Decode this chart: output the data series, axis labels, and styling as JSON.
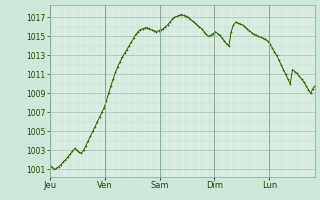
{
  "background_color": "#cce8d8",
  "plot_bg_color": "#dff0e8",
  "line_color": "#2a6000",
  "marker_color": "#2a6000",
  "grid_color_major": "#aacaba",
  "grid_color_minor": "#c0dcc8",
  "yticks": [
    1001,
    1003,
    1005,
    1007,
    1009,
    1011,
    1013,
    1015,
    1017
  ],
  "ylim": [
    1000.2,
    1018.3
  ],
  "xlabels": [
    "Jeu",
    "Ven",
    "Sam",
    "Dim",
    "Lun"
  ],
  "x_day_positions": [
    0,
    24,
    48,
    72,
    96
  ],
  "total_hours": 116,
  "pressure_data": [
    1001.5,
    1001.2,
    1001.0,
    1001.1,
    1001.3,
    1001.5,
    1001.8,
    1002.0,
    1002.3,
    1002.6,
    1002.9,
    1003.2,
    1003.0,
    1002.8,
    1002.7,
    1003.0,
    1003.5,
    1004.0,
    1004.5,
    1005.0,
    1005.5,
    1006.0,
    1006.5,
    1007.0,
    1007.5,
    1008.2,
    1009.0,
    1009.8,
    1010.5,
    1011.2,
    1011.8,
    1012.3,
    1012.8,
    1013.2,
    1013.6,
    1014.0,
    1014.4,
    1014.8,
    1015.2,
    1015.5,
    1015.7,
    1015.8,
    1015.9,
    1015.9,
    1015.8,
    1015.7,
    1015.6,
    1015.5,
    1015.6,
    1015.7,
    1015.8,
    1016.0,
    1016.2,
    1016.5,
    1016.8,
    1017.0,
    1017.1,
    1017.2,
    1017.3,
    1017.2,
    1017.1,
    1017.0,
    1016.8,
    1016.6,
    1016.4,
    1016.2,
    1016.0,
    1015.8,
    1015.5,
    1015.2,
    1015.0,
    1015.1,
    1015.3,
    1015.5,
    1015.3,
    1015.1,
    1014.8,
    1014.5,
    1014.2,
    1014.0,
    1015.5,
    1016.2,
    1016.5,
    1016.4,
    1016.3,
    1016.2,
    1016.0,
    1015.8,
    1015.6,
    1015.4,
    1015.2,
    1015.1,
    1015.0,
    1014.9,
    1014.8,
    1014.7,
    1014.5,
    1014.2,
    1013.8,
    1013.4,
    1013.0,
    1012.5,
    1012.0,
    1011.5,
    1011.0,
    1010.5,
    1010.0,
    1011.5,
    1011.3,
    1011.1,
    1010.8,
    1010.5,
    1010.2,
    1009.8,
    1009.4,
    1009.0,
    1009.5,
    1009.8
  ]
}
